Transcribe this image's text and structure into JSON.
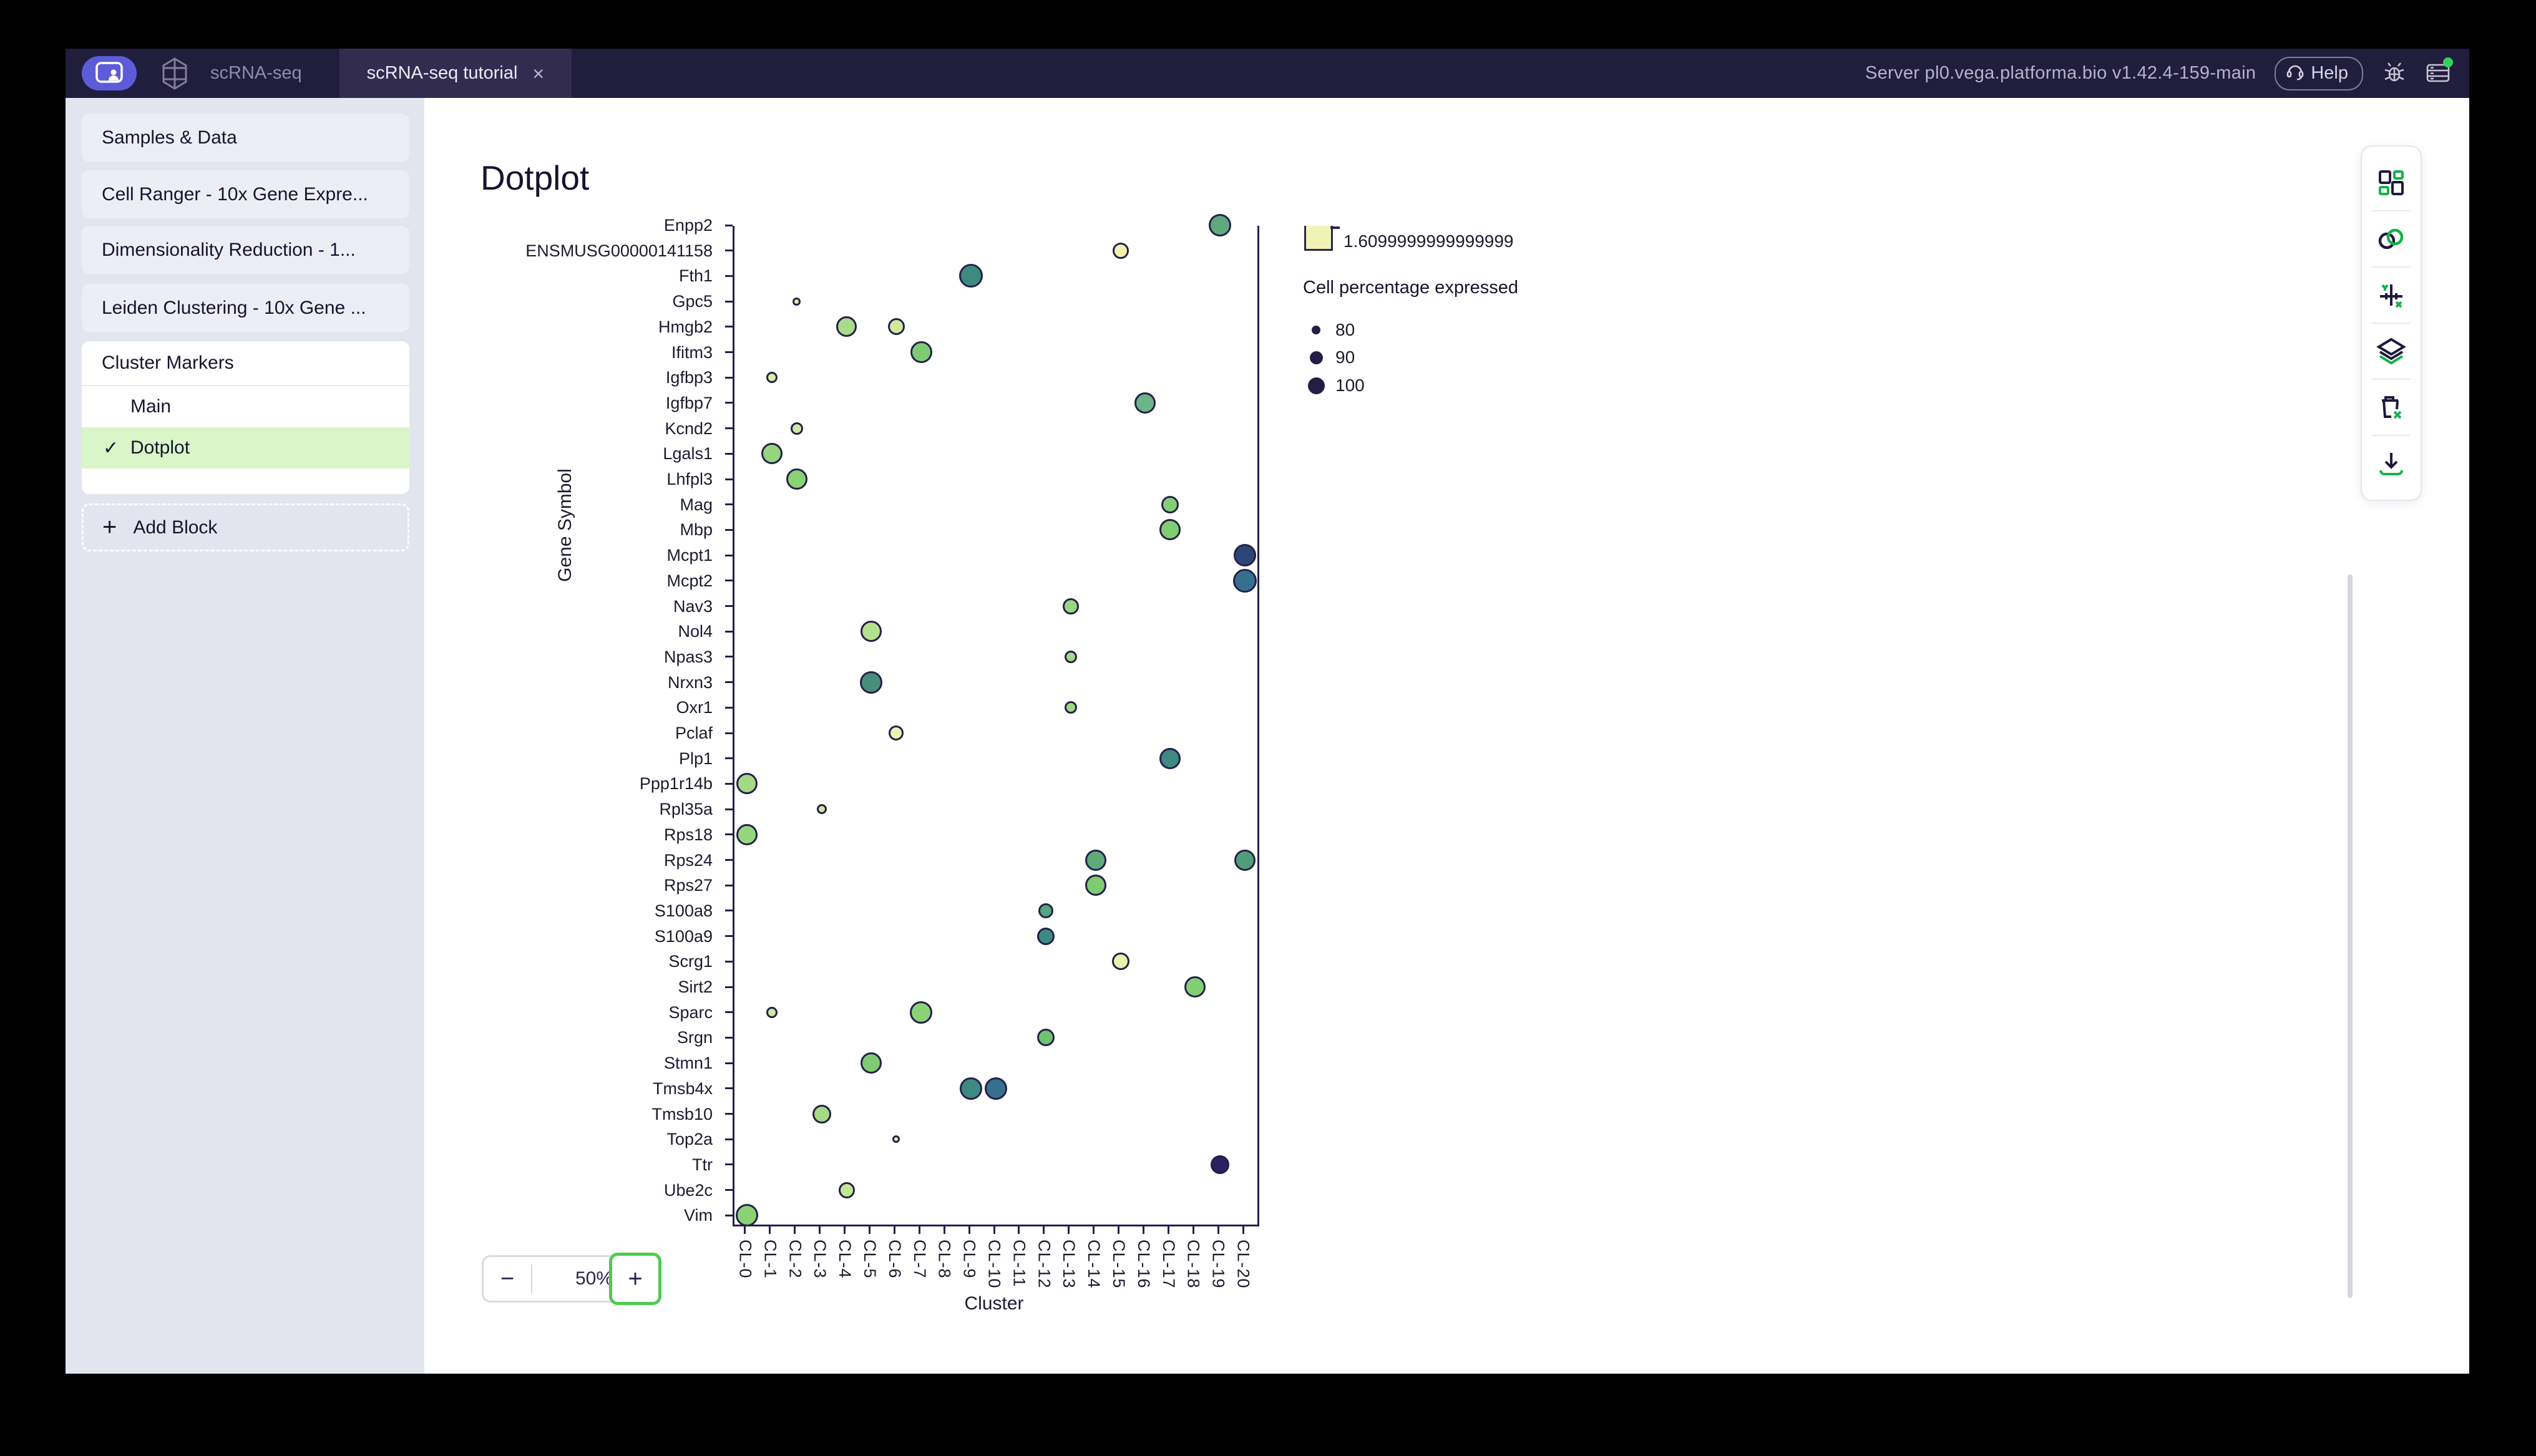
{
  "topbar": {
    "tabs": [
      {
        "label": "scRNA-seq"
      },
      {
        "label": "scRNA-seq tutorial",
        "close": "×",
        "active": true
      }
    ],
    "server": "Server pl0.vega.platforma.bio v1.42.4-159-main",
    "help_label": "Help"
  },
  "sidebar": {
    "blocks": [
      {
        "label": "Samples & Data"
      },
      {
        "label": "Cell Ranger - 10x Gene Expre..."
      },
      {
        "label": "Dimensionality Reduction - 1..."
      },
      {
        "label": "Leiden Clustering - 10x Gene ..."
      }
    ],
    "cluster_markers": {
      "title": "Cluster Markers",
      "items": [
        {
          "label": "Main",
          "check": ""
        },
        {
          "label": "Dotplot",
          "check": "✓",
          "selected": true
        }
      ]
    },
    "add_block": {
      "plus": "+",
      "label": "Add Block"
    }
  },
  "main": {
    "title": "Dotplot",
    "zoom": {
      "minus": "−",
      "level": "50%",
      "plus": "+"
    }
  },
  "toolbar": {
    "icons": [
      "blocks-icon",
      "link-icon",
      "axes-icon",
      "layers-icon",
      "trash-remove-icon",
      "download-icon"
    ]
  },
  "chart_data": {
    "type": "dotplot",
    "xlabel": "Cluster",
    "ylabel": "Gene Symbol",
    "x_categories": [
      "CL-0",
      "CL-1",
      "CL-2",
      "CL-3",
      "CL-4",
      "CL-5",
      "CL-6",
      "CL-7",
      "CL-8",
      "CL-9",
      "CL-10",
      "CL-11",
      "CL-12",
      "CL-13",
      "CL-14",
      "CL-15",
      "CL-16",
      "CL-17",
      "CL-18",
      "CL-19",
      "CL-20"
    ],
    "genes": [
      "Enpp2",
      "ENSMUSG00000141158",
      "Fth1",
      "Gpc5",
      "Hmgb2",
      "Ifitm3",
      "Igfbp3",
      "Igfbp7",
      "Kcnd2",
      "Lgals1",
      "Lhfpl3",
      "Mag",
      "Mbp",
      "Mcpt1",
      "Mcpt2",
      "Nav3",
      "Nol4",
      "Npas3",
      "Nrxn3",
      "Oxr1",
      "Pclaf",
      "Plp1",
      "Ppp1r14b",
      "Rpl35a",
      "Rps18",
      "Rps24",
      "Rps27",
      "S100a8",
      "S100a9",
      "Scrg1",
      "Sirt2",
      "Sparc",
      "Srgn",
      "Stmn1",
      "Tmsb4x",
      "Tmsb10",
      "Top2a",
      "Ttr",
      "Ube2c",
      "Vim"
    ],
    "points": [
      {
        "gene": "Enpp2",
        "cluster": "CL-19",
        "d": 36,
        "color": "#5fa97c"
      },
      {
        "gene": "ENSMUSG00000141158",
        "cluster": "CL-15",
        "d": 26,
        "color": "#f2f2ae"
      },
      {
        "gene": "Fth1",
        "cluster": "CL-9",
        "d": 38,
        "color": "#3d8a80"
      },
      {
        "gene": "Gpc5",
        "cluster": "CL-2",
        "d": 13,
        "color": "#dfefa3"
      },
      {
        "gene": "Hmgb2",
        "cluster": "CL-4",
        "d": 33,
        "color": "#a8dc8a"
      },
      {
        "gene": "Hmgb2",
        "cluster": "CL-6",
        "d": 27,
        "color": "#cfe99f"
      },
      {
        "gene": "Ifitm3",
        "cluster": "CL-7",
        "d": 35,
        "color": "#7ecb72"
      },
      {
        "gene": "Igfbp3",
        "cluster": "CL-1",
        "d": 18,
        "color": "#d8eda3"
      },
      {
        "gene": "Igfbp7",
        "cluster": "CL-16",
        "d": 34,
        "color": "#6cb487"
      },
      {
        "gene": "Kcnd2",
        "cluster": "CL-2",
        "d": 20,
        "color": "#cdea9c"
      },
      {
        "gene": "Lgals1",
        "cluster": "CL-1",
        "d": 34,
        "color": "#95d57e"
      },
      {
        "gene": "Lhfpl3",
        "cluster": "CL-2",
        "d": 34,
        "color": "#8bd275"
      },
      {
        "gene": "Mag",
        "cluster": "CL-17",
        "d": 28,
        "color": "#84cf74"
      },
      {
        "gene": "Mbp",
        "cluster": "CL-17",
        "d": 34,
        "color": "#80cd6f"
      },
      {
        "gene": "Mcpt1",
        "cluster": "CL-20",
        "d": 36,
        "color": "#2c4577"
      },
      {
        "gene": "Mcpt2",
        "cluster": "CL-20",
        "d": 38,
        "color": "#36708f"
      },
      {
        "gene": "Nav3",
        "cluster": "CL-13",
        "d": 26,
        "color": "#9bd77f"
      },
      {
        "gene": "Nol4",
        "cluster": "CL-5",
        "d": 34,
        "color": "#b4e18d"
      },
      {
        "gene": "Npas3",
        "cluster": "CL-13",
        "d": 20,
        "color": "#a5da85"
      },
      {
        "gene": "Nrxn3",
        "cluster": "CL-5",
        "d": 36,
        "color": "#478f7c"
      },
      {
        "gene": "Oxr1",
        "cluster": "CL-13",
        "d": 20,
        "color": "#9ed881"
      },
      {
        "gene": "Pclaf",
        "cluster": "CL-6",
        "d": 24,
        "color": "#f0f2b0"
      },
      {
        "gene": "Plp1",
        "cluster": "CL-17",
        "d": 34,
        "color": "#3e8a82"
      },
      {
        "gene": "Ppp1r14b",
        "cluster": "CL-0",
        "d": 34,
        "color": "#a3da86"
      },
      {
        "gene": "Rpl35a",
        "cluster": "CL-3",
        "d": 16,
        "color": "#cde99b"
      },
      {
        "gene": "Rps18",
        "cluster": "CL-0",
        "d": 34,
        "color": "#98d67c"
      },
      {
        "gene": "Rps24",
        "cluster": "CL-14",
        "d": 34,
        "color": "#5fa97c"
      },
      {
        "gene": "Rps24",
        "cluster": "CL-20",
        "d": 34,
        "color": "#4f9e79"
      },
      {
        "gene": "Rps27",
        "cluster": "CL-14",
        "d": 34,
        "color": "#7ecb72"
      },
      {
        "gene": "S100a8",
        "cluster": "CL-12",
        "d": 24,
        "color": "#55a57f"
      },
      {
        "gene": "S100a9",
        "cluster": "CL-12",
        "d": 28,
        "color": "#3e8a82"
      },
      {
        "gene": "Scrg1",
        "cluster": "CL-15",
        "d": 28,
        "color": "#eaf2ab"
      },
      {
        "gene": "Sirt2",
        "cluster": "CL-18",
        "d": 34,
        "color": "#82ce72"
      },
      {
        "gene": "Sparc",
        "cluster": "CL-1",
        "d": 18,
        "color": "#cdea9c"
      },
      {
        "gene": "Sparc",
        "cluster": "CL-7",
        "d": 36,
        "color": "#8bd275"
      },
      {
        "gene": "Srgn",
        "cluster": "CL-12",
        "d": 28,
        "color": "#70c470"
      },
      {
        "gene": "Stmn1",
        "cluster": "CL-5",
        "d": 34,
        "color": "#7ecb72"
      },
      {
        "gene": "Tmsb4x",
        "cluster": "CL-9",
        "d": 36,
        "color": "#3d8a80"
      },
      {
        "gene": "Tmsb4x",
        "cluster": "CL-10",
        "d": 36,
        "color": "#36708f"
      },
      {
        "gene": "Tmsb10",
        "cluster": "CL-3",
        "d": 30,
        "color": "#a5da85"
      },
      {
        "gene": "Top2a",
        "cluster": "CL-6",
        "d": 12,
        "color": "#f0f2b0"
      },
      {
        "gene": "Ttr",
        "cluster": "CL-19",
        "d": 30,
        "color": "#2a2260"
      },
      {
        "gene": "Ube2c",
        "cluster": "CL-4",
        "d": 26,
        "color": "#c3e693"
      },
      {
        "gene": "Vim",
        "cluster": "CL-0",
        "d": 36,
        "color": "#8bd275"
      }
    ],
    "color_legend": {
      "tick_label": "1.6099999999999999",
      "swatch_color": "#f1f3b6"
    },
    "size_legend": {
      "title": "Cell percentage expressed",
      "entries": [
        {
          "label": "80",
          "d": 14
        },
        {
          "label": "90",
          "d": 21
        },
        {
          "label": "100",
          "d": 27
        }
      ],
      "dot_color": "#221e44"
    }
  }
}
